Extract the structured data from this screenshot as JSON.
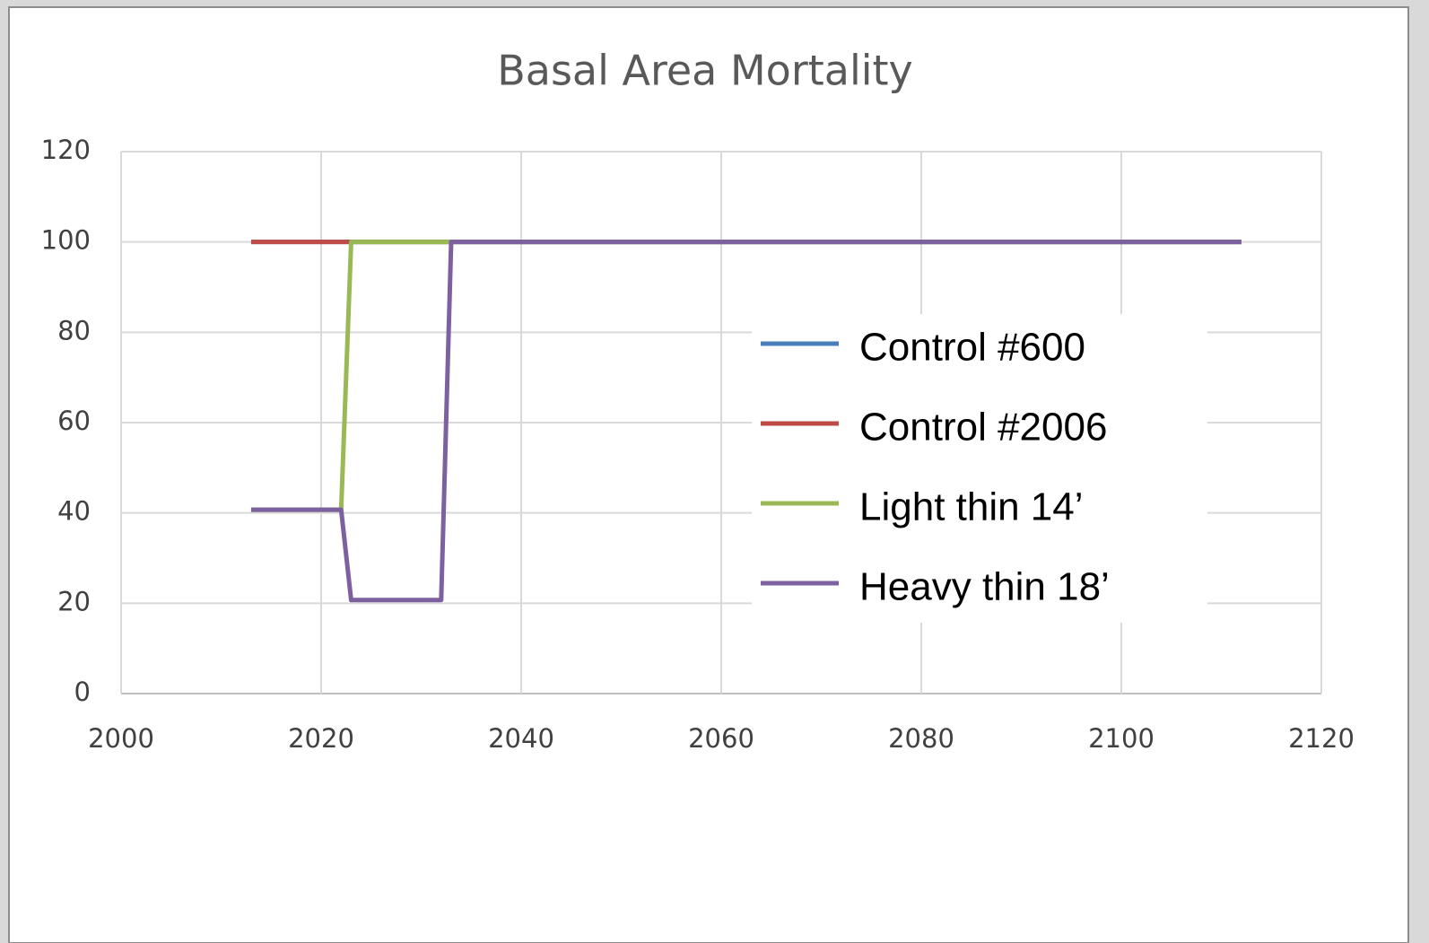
{
  "chart_data": {
    "type": "line",
    "title": "Basal Area Mortality",
    "x": [
      2013,
      2022,
      2023,
      2032,
      2033,
      2112
    ],
    "series": [
      {
        "name": "Control #600",
        "color": "#4a7ebb",
        "values": [
          100,
          100,
          100,
          100,
          100,
          100
        ]
      },
      {
        "name": "Control #2006",
        "color": "#be4b48",
        "values": [
          100,
          100,
          100,
          100,
          100,
          100
        ]
      },
      {
        "name": "Light thin 14’",
        "color": "#98b954",
        "values": [
          40.7,
          40.7,
          100,
          100,
          100,
          100
        ]
      },
      {
        "name": "Heavy thin 18’",
        "color": "#7d60a0",
        "values": [
          40.7,
          40.7,
          20.7,
          20.7,
          100,
          100
        ]
      }
    ],
    "xlim": [
      2000,
      2120
    ],
    "xticks": [
      2000,
      2020,
      2040,
      2060,
      2080,
      2100,
      2120
    ],
    "ylim": [
      0,
      120
    ],
    "yticks": [
      0,
      20,
      40,
      60,
      80,
      100,
      120
    ],
    "grid": true,
    "legend": "right"
  }
}
